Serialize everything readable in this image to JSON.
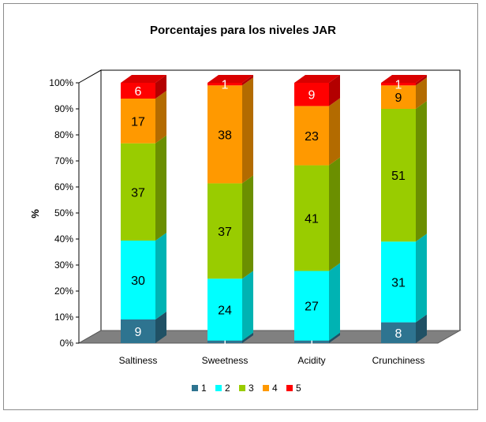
{
  "chart_data": {
    "type": "bar",
    "stacked": true,
    "three_d": true,
    "title": "Porcentajes para los niveles JAR",
    "ylabel": "%",
    "xlabel": "",
    "ylim": [
      0,
      100
    ],
    "y_ticks": [
      "0%",
      "10%",
      "20%",
      "30%",
      "40%",
      "50%",
      "60%",
      "70%",
      "80%",
      "90%",
      "100%"
    ],
    "categories": [
      "Saltiness",
      "Sweetness",
      "Acidity",
      "Crunchiness"
    ],
    "series": [
      {
        "name": "1",
        "color": "#2e7490",
        "values": [
          9,
          1,
          1,
          8
        ]
      },
      {
        "name": "2",
        "color": "#00ffff",
        "values": [
          30,
          24,
          27,
          31
        ]
      },
      {
        "name": "3",
        "color": "#99cc00",
        "values": [
          37,
          37,
          41,
          51
        ]
      },
      {
        "name": "4",
        "color": "#ff9900",
        "values": [
          17,
          38,
          23,
          9
        ]
      },
      {
        "name": "5",
        "color": "#ff0000",
        "values": [
          6,
          1,
          9,
          1
        ]
      }
    ],
    "grid": false,
    "legend_position": "bottom"
  }
}
